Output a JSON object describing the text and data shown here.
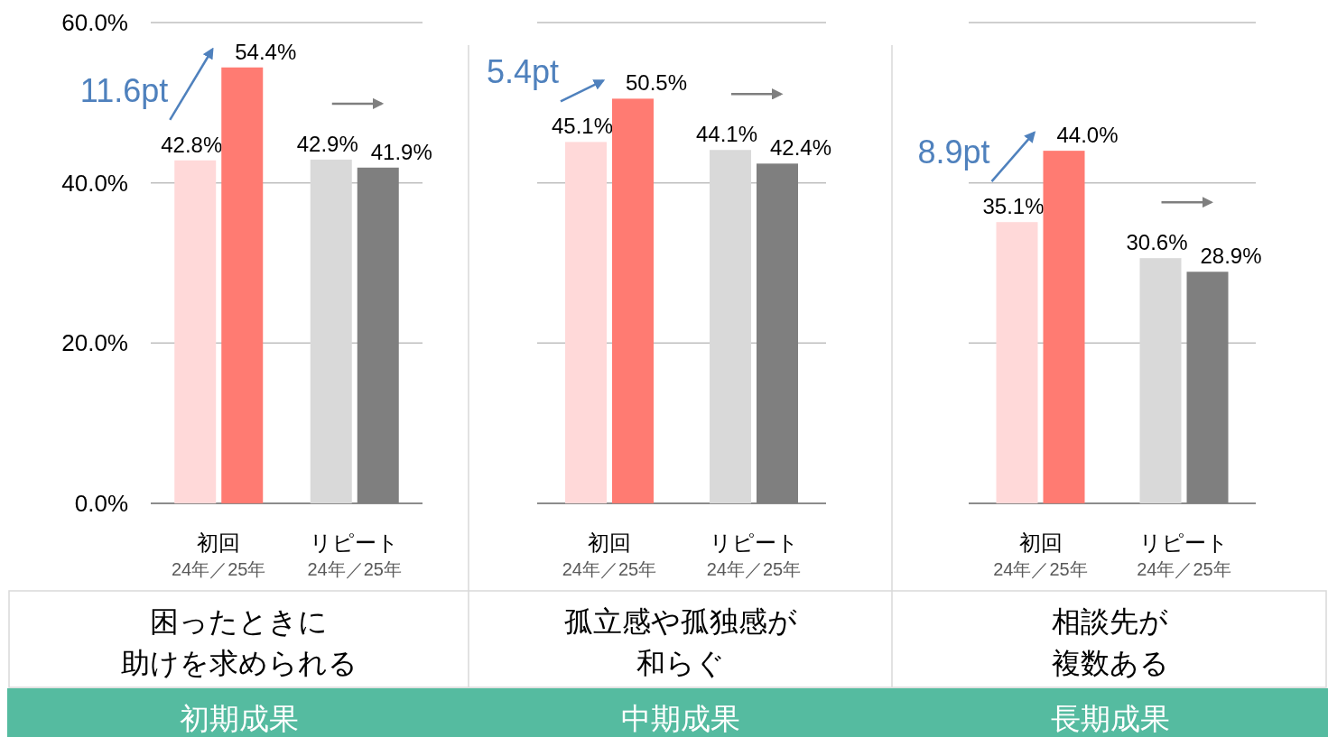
{
  "chart_data": [
    {
      "type": "bar",
      "title": "初期成果",
      "xlabel": "困ったときに助けを求められる",
      "categories": [
        "初回",
        "リピート"
      ],
      "series": [
        {
          "colors": [
            "#ffd9d9",
            "#d9d9d9"
          ],
          "values": [
            42.8,
            42.9
          ],
          "value_labels": [
            "42.8%",
            "42.9%"
          ]
        },
        {
          "colors": [
            "#ff7b72",
            "#7f7f7f"
          ],
          "values": [
            54.4,
            41.9
          ],
          "value_labels": [
            "54.4%",
            "41.9%"
          ]
        }
      ],
      "ylim": [
        0,
        60
      ],
      "yticks": [
        {
          "value": 0,
          "label": "0.0%"
        },
        {
          "value": 20,
          "label": "20.0%"
        },
        {
          "value": 40,
          "label": "40.0%"
        },
        {
          "value": 60,
          "label": "60.0%"
        }
      ],
      "grid": "y",
      "annotations": [
        "11.6pt",
        "24年／25年",
        "24年／25年"
      ]
    },
    {
      "type": "bar",
      "title": "中期成果",
      "xlabel": "孤立感や孤独感が和らぐ",
      "categories": [
        "初回",
        "リピート"
      ],
      "series": [
        {
          "colors": [
            "#ffd9d9",
            "#d9d9d9"
          ],
          "values": [
            45.1,
            44.1
          ],
          "value_labels": [
            "45.1%",
            "44.1%"
          ]
        },
        {
          "colors": [
            "#ff7b72",
            "#7f7f7f"
          ],
          "values": [
            50.5,
            42.4
          ],
          "value_labels": [
            "50.5%",
            "42.4%"
          ]
        }
      ],
      "ylim": [
        0,
        60
      ],
      "yticks": [
        {
          "value": 0,
          "label": null
        },
        {
          "value": 20,
          "label": null
        },
        {
          "value": 40,
          "label": null
        },
        {
          "value": 60,
          "label": null
        }
      ],
      "grid": "y",
      "tick_labels": "x",
      "annotations": [
        "5.4pt",
        "24年／25年",
        "24年／25年"
      ]
    },
    {
      "type": "bar",
      "title": "長期成果",
      "xlabel": "相談先が複数ある",
      "categories": [
        "初回",
        "リピート"
      ],
      "series": [
        {
          "colors": [
            "#ffd9d9",
            "#d9d9d9"
          ],
          "values": [
            35.1,
            30.6
          ],
          "value_labels": [
            "35.1%",
            "30.6%"
          ]
        },
        {
          "colors": [
            "#ff7b72",
            "#7f7f7f"
          ],
          "values": [
            44.0,
            28.9
          ],
          "value_labels": [
            "44.0%",
            "28.9%"
          ]
        }
      ],
      "ylim": [
        0,
        60
      ],
      "yticks": [
        {
          "value": 0,
          "label": null
        },
        {
          "value": 20,
          "label": null
        },
        {
          "value": 40,
          "label": null
        },
        {
          "value": 60,
          "label": null
        }
      ],
      "grid": "y",
      "tick_labels": "x",
      "annotations": [
        "8.9pt",
        "24年／25年",
        "24年／25年"
      ]
    }
  ]
}
